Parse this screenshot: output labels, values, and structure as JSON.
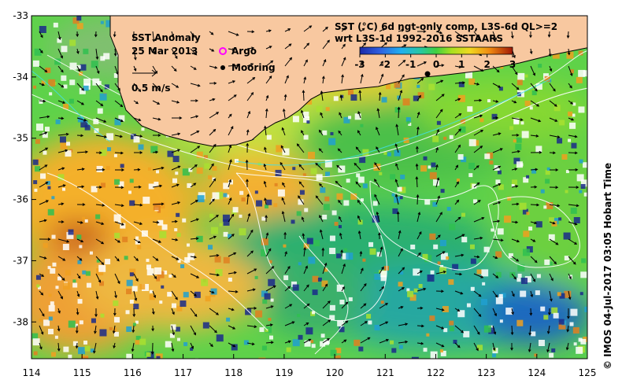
{
  "map": {
    "title": "SST Anomaly",
    "date": "25 Mar 2013",
    "scale_label": "0.5 m/s",
    "legend_argo": "Argo",
    "legend_mooring": "Mooring",
    "colorbar_title_line1": "SST (°C) 6d ngt-only comp, L3S-6d QL>=2",
    "colorbar_title_line2": "wrt L3S-1d 1992-2016 SSTAARS",
    "colorbar_ticks": [
      "-3",
      "-2",
      "-1",
      "0",
      "1",
      "2",
      "3"
    ],
    "colorbar_range": [
      -3,
      3
    ],
    "x_ticks": [
      "114",
      "115",
      "116",
      "117",
      "118",
      "119",
      "120",
      "121",
      "122",
      "123",
      "124",
      "125"
    ],
    "y_ticks": [
      "-33",
      "-34",
      "-35",
      "-36",
      "-37",
      "-38"
    ],
    "lon_range": [
      114,
      125
    ],
    "lat_range": [
      -38.6,
      -33
    ],
    "credit": "© IMOS 04-Jul-2017 03:05 Hobart Time",
    "colors": {
      "land": "#f8c8a0",
      "coast": "#000000",
      "contour": "#ffffff",
      "argo": "#ff00ff",
      "mooring": "#000000"
    }
  }
}
